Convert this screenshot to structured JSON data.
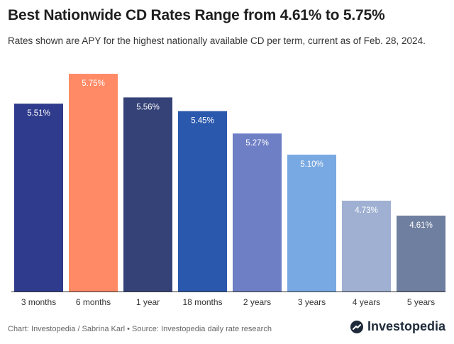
{
  "header": {
    "title": "Best Nationwide CD Rates Range from 4.61% to 5.75%",
    "subtitle": "Rates shown are APY for the highest nationally available CD per term, current as of Feb. 28, 2024."
  },
  "footer": {
    "credit": "Chart: Investopedia / Sabrina Karl • Source: Investopedia daily rate research",
    "brand": "Investopedia"
  },
  "chart_data": {
    "type": "bar",
    "categories": [
      "3 months",
      "6 months",
      "1 year",
      "18 months",
      "2 years",
      "3 years",
      "4 years",
      "5 years"
    ],
    "values": [
      5.51,
      5.75,
      5.56,
      5.45,
      5.27,
      5.1,
      4.73,
      4.61
    ],
    "labels": [
      "5.51%",
      "5.75%",
      "5.56%",
      "5.45%",
      "5.27%",
      "5.10%",
      "4.73%",
      "4.61%"
    ],
    "colors": [
      "#2f3b8c",
      "#ff8a65",
      "#354277",
      "#2a58ad",
      "#6e7fc6",
      "#79a9e2",
      "#9fb0d2",
      "#6f7f9f"
    ],
    "label_colors": [
      "#ffffff",
      "#ffffff",
      "#ffffff",
      "#ffffff",
      "#ffffff",
      "#ffffff",
      "#ffffff",
      "#ffffff"
    ],
    "title": "Best Nationwide CD Rates Range from 4.61% to 5.75%",
    "xlabel": "",
    "ylabel": "",
    "grid": false,
    "legend": "none"
  }
}
